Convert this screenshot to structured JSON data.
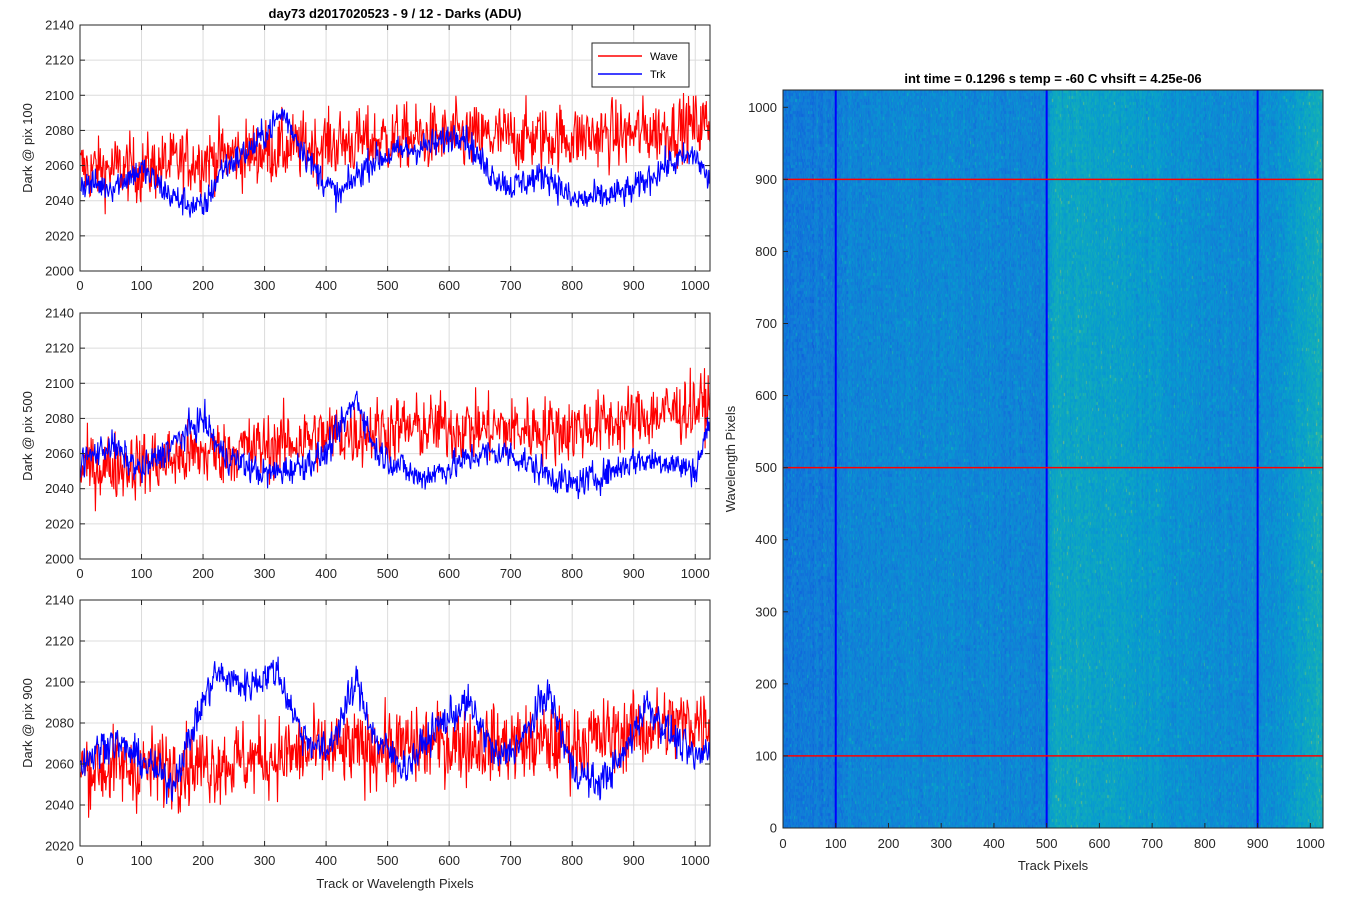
{
  "figure": {
    "suptitle": "day73 d2017020523 - 9 / 12 - Darks (ADU)"
  },
  "chart_data": [
    {
      "type": "line",
      "title": "",
      "xlabel": "",
      "ylabel": "Dark @ pix 100",
      "xlim": [
        0,
        1024
      ],
      "ylim": [
        2000,
        2140
      ],
      "xticks": [
        0,
        100,
        200,
        300,
        400,
        500,
        600,
        700,
        800,
        900,
        1000
      ],
      "yticks": [
        2000,
        2020,
        2040,
        2060,
        2080,
        2100,
        2120,
        2140
      ],
      "grid": true,
      "legend": "top-right",
      "series": [
        {
          "name": "Wave",
          "color": "#ff0000",
          "noise": 13,
          "trend": [
            [
              0,
              2058
            ],
            [
              100,
              2058
            ],
            [
              200,
              2064
            ],
            [
              300,
              2068
            ],
            [
              400,
              2072
            ],
            [
              500,
              2075
            ],
            [
              600,
              2076
            ],
            [
              700,
              2076
            ],
            [
              800,
              2076
            ],
            [
              900,
              2078
            ],
            [
              1024,
              2084
            ]
          ]
        },
        {
          "name": "Trk",
          "color": "#0000ff",
          "noise": 6,
          "trend": [
            [
              0,
              2050
            ],
            [
              50,
              2048
            ],
            [
              100,
              2058
            ],
            [
              150,
              2042
            ],
            [
              200,
              2035
            ],
            [
              230,
              2058
            ],
            [
              280,
              2070
            ],
            [
              330,
              2090
            ],
            [
              380,
              2058
            ],
            [
              420,
              2042
            ],
            [
              470,
              2062
            ],
            [
              520,
              2068
            ],
            [
              580,
              2072
            ],
            [
              620,
              2080
            ],
            [
              660,
              2058
            ],
            [
              700,
              2048
            ],
            [
              760,
              2055
            ],
            [
              800,
              2040
            ],
            [
              850,
              2042
            ],
            [
              900,
              2046
            ],
            [
              950,
              2060
            ],
            [
              1000,
              2066
            ],
            [
              1024,
              2050
            ]
          ]
        }
      ]
    },
    {
      "type": "line",
      "title": "",
      "xlabel": "",
      "ylabel": "Dark @ pix 500",
      "xlim": [
        0,
        1024
      ],
      "ylim": [
        2000,
        2140
      ],
      "xticks": [
        0,
        100,
        200,
        300,
        400,
        500,
        600,
        700,
        800,
        900,
        1000
      ],
      "yticks": [
        2000,
        2020,
        2040,
        2060,
        2080,
        2100,
        2120,
        2140
      ],
      "grid": true,
      "legend": "none",
      "series": [
        {
          "name": "Wave",
          "color": "#ff0000",
          "noise": 13,
          "trend": [
            [
              0,
              2052
            ],
            [
              100,
              2054
            ],
            [
              200,
              2060
            ],
            [
              300,
              2064
            ],
            [
              400,
              2070
            ],
            [
              500,
              2074
            ],
            [
              600,
              2075
            ],
            [
              700,
              2074
            ],
            [
              800,
              2074
            ],
            [
              900,
              2080
            ],
            [
              1024,
              2088
            ]
          ]
        },
        {
          "name": "Trk",
          "color": "#0000ff",
          "noise": 6,
          "trend": [
            [
              0,
              2055
            ],
            [
              50,
              2065
            ],
            [
              100,
              2050
            ],
            [
              150,
              2065
            ],
            [
              200,
              2080
            ],
            [
              230,
              2060
            ],
            [
              300,
              2048
            ],
            [
              350,
              2052
            ],
            [
              400,
              2060
            ],
            [
              450,
              2092
            ],
            [
              480,
              2062
            ],
            [
              550,
              2046
            ],
            [
              600,
              2052
            ],
            [
              650,
              2060
            ],
            [
              700,
              2060
            ],
            [
              750,
              2050
            ],
            [
              800,
              2042
            ],
            [
              850,
              2048
            ],
            [
              900,
              2056
            ],
            [
              950,
              2056
            ],
            [
              1000,
              2050
            ],
            [
              1024,
              2078
            ]
          ]
        }
      ]
    },
    {
      "type": "line",
      "title": "",
      "xlabel": "Track or Wavelength Pixels",
      "ylabel": "Dark @ pix 900",
      "xlim": [
        0,
        1024
      ],
      "ylim": [
        2020,
        2140
      ],
      "xticks": [
        0,
        100,
        200,
        300,
        400,
        500,
        600,
        700,
        800,
        900,
        1000
      ],
      "yticks": [
        2020,
        2040,
        2060,
        2080,
        2100,
        2120,
        2140
      ],
      "grid": true,
      "legend": "none",
      "series": [
        {
          "name": "Wave",
          "color": "#ff0000",
          "noise": 13,
          "trend": [
            [
              0,
              2058
            ],
            [
              100,
              2058
            ],
            [
              200,
              2060
            ],
            [
              300,
              2063
            ],
            [
              400,
              2066
            ],
            [
              500,
              2068
            ],
            [
              600,
              2070
            ],
            [
              700,
              2070
            ],
            [
              800,
              2070
            ],
            [
              900,
              2076
            ],
            [
              1024,
              2082
            ]
          ]
        },
        {
          "name": "Trk",
          "color": "#0000ff",
          "noise": 6,
          "trend": [
            [
              0,
              2060
            ],
            [
              50,
              2072
            ],
            [
              100,
              2062
            ],
            [
              150,
              2050
            ],
            [
              200,
              2090
            ],
            [
              220,
              2104
            ],
            [
              270,
              2098
            ],
            [
              320,
              2106
            ],
            [
              360,
              2075
            ],
            [
              400,
              2065
            ],
            [
              450,
              2100
            ],
            [
              480,
              2072
            ],
            [
              530,
              2058
            ],
            [
              580,
              2078
            ],
            [
              630,
              2090
            ],
            [
              680,
              2062
            ],
            [
              720,
              2072
            ],
            [
              760,
              2096
            ],
            [
              800,
              2058
            ],
            [
              840,
              2050
            ],
            [
              880,
              2062
            ],
            [
              920,
              2090
            ],
            [
              950,
              2078
            ],
            [
              1000,
              2062
            ],
            [
              1024,
              2068
            ]
          ]
        }
      ]
    },
    {
      "type": "heatmap",
      "title": "int time = 0.1296 s    temp = -60 C    vhsift = 4.25e-06",
      "xlabel": "Track Pixels",
      "ylabel": "Wavelength Pixels",
      "xlim": [
        0,
        1024
      ],
      "ylim": [
        0,
        1024
      ],
      "xticks": [
        0,
        100,
        200,
        300,
        400,
        500,
        600,
        700,
        800,
        900,
        1000
      ],
      "yticks": [
        0,
        100,
        200,
        300,
        400,
        500,
        600,
        700,
        800,
        900,
        1000
      ],
      "colormap": "parula",
      "hlines": {
        "values": [
          100,
          500,
          900
        ],
        "color": "#ff0000"
      },
      "vlines": {
        "values": [
          100,
          500,
          900
        ],
        "color": "#0000ff"
      },
      "column_brightness": [
        [
          0,
          0.28
        ],
        [
          80,
          0.3
        ],
        [
          150,
          0.34
        ],
        [
          220,
          0.36
        ],
        [
          300,
          0.36
        ],
        [
          420,
          0.34
        ],
        [
          500,
          0.34
        ],
        [
          510,
          0.52
        ],
        [
          600,
          0.5
        ],
        [
          700,
          0.44
        ],
        [
          800,
          0.38
        ],
        [
          900,
          0.36
        ],
        [
          960,
          0.44
        ],
        [
          1024,
          0.58
        ]
      ]
    }
  ]
}
